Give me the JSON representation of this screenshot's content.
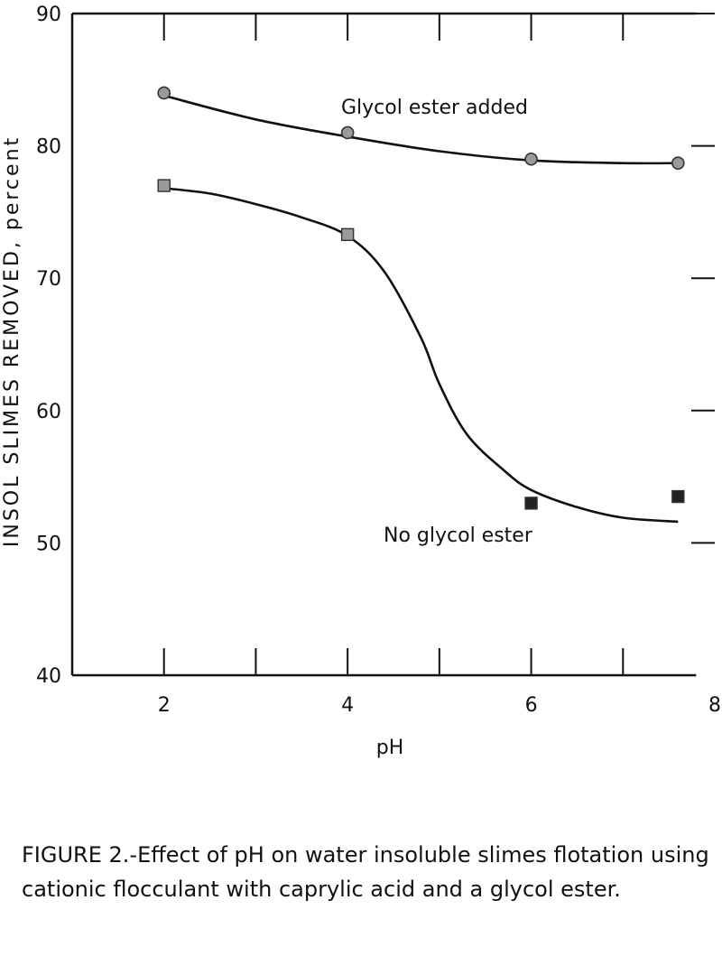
{
  "chart_data": {
    "type": "line",
    "title": "",
    "xlabel": "pH",
    "ylabel": "INSOL SLIMES REMOVED, percent",
    "xlim": [
      1,
      8
    ],
    "ylim": [
      40,
      90
    ],
    "xticks": [
      2,
      4,
      6,
      8
    ],
    "yticks": [
      40,
      50,
      60,
      70,
      80,
      90
    ],
    "grid": false,
    "series": [
      {
        "name": "Glycol ester added",
        "marker": "circle",
        "x": [
          2,
          4,
          6,
          7.6
        ],
        "y": [
          84,
          81,
          79,
          78.7
        ],
        "curve_x": [
          2,
          3,
          4,
          5,
          6,
          7,
          7.6
        ],
        "curve_y": [
          83.8,
          82.0,
          80.7,
          79.6,
          78.9,
          78.7,
          78.7
        ]
      },
      {
        "name": "No glycol ester",
        "marker": "square",
        "x": [
          2,
          4,
          6,
          7.6
        ],
        "y": [
          77,
          73.3,
          53,
          53.5
        ],
        "curve_x": [
          2,
          2.5,
          3,
          3.5,
          4,
          4.4,
          4.8,
          5,
          5.3,
          5.7,
          6,
          6.5,
          7,
          7.6
        ],
        "curve_y": [
          76.8,
          76.4,
          75.6,
          74.6,
          73.2,
          70.5,
          65.5,
          62.0,
          58.2,
          55.5,
          54.0,
          52.7,
          51.9,
          51.6
        ]
      }
    ],
    "annotations": [
      "Glycol ester added",
      "No glycol ester"
    ]
  },
  "caption": {
    "lead": "FIGURE 2.-",
    "text": "Effect of pH on water insoluble slimes flotation using cationic flocculant with caprylic acid and a glycol ester."
  }
}
